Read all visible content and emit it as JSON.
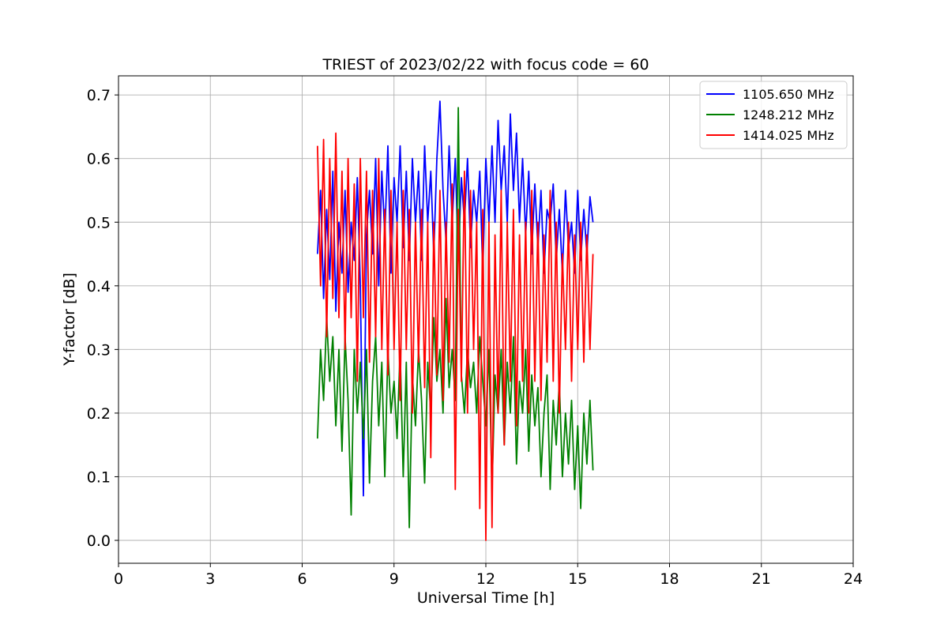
{
  "chart_data": {
    "type": "line",
    "title": "TRIEST of 2023/02/22 with focus code = 60",
    "xlabel": "Universal Time [h]",
    "ylabel": "Y-factor [dB]",
    "xlim": [
      0,
      24
    ],
    "ylim": [
      -0.036,
      0.73
    ],
    "xticks": [
      0,
      3,
      6,
      9,
      12,
      15,
      18,
      21,
      24
    ],
    "yticks": [
      0.0,
      0.1,
      0.2,
      0.3,
      0.4,
      0.5,
      0.6,
      0.7
    ],
    "grid": true,
    "legend_position": "top-right",
    "series": [
      {
        "name": "1105.650 MHz",
        "color": "#0000ff",
        "x": [
          6.5,
          6.6,
          6.7,
          6.8,
          6.9,
          7.0,
          7.1,
          7.2,
          7.3,
          7.4,
          7.5,
          7.6,
          7.7,
          7.8,
          7.9,
          8.0,
          8.1,
          8.2,
          8.3,
          8.4,
          8.5,
          8.6,
          8.7,
          8.8,
          8.9,
          9.0,
          9.1,
          9.2,
          9.3,
          9.4,
          9.5,
          9.6,
          9.7,
          9.8,
          9.9,
          10.0,
          10.1,
          10.2,
          10.3,
          10.4,
          10.5,
          10.6,
          10.7,
          10.8,
          10.9,
          11.0,
          11.1,
          11.2,
          11.3,
          11.4,
          11.5,
          11.6,
          11.7,
          11.8,
          11.9,
          12.0,
          12.1,
          12.2,
          12.3,
          12.4,
          12.5,
          12.6,
          12.7,
          12.8,
          12.9,
          13.0,
          13.1,
          13.2,
          13.3,
          13.4,
          13.5,
          13.6,
          13.7,
          13.8,
          13.9,
          14.0,
          14.1,
          14.2,
          14.3,
          14.4,
          14.5,
          14.6,
          14.7,
          14.8,
          14.9,
          15.0,
          15.1,
          15.2,
          15.3,
          15.4,
          15.5
        ],
        "values": [
          0.45,
          0.55,
          0.38,
          0.52,
          0.41,
          0.58,
          0.36,
          0.5,
          0.42,
          0.55,
          0.39,
          0.5,
          0.44,
          0.57,
          0.4,
          0.07,
          0.48,
          0.55,
          0.45,
          0.6,
          0.4,
          0.58,
          0.48,
          0.62,
          0.42,
          0.57,
          0.5,
          0.62,
          0.46,
          0.58,
          0.44,
          0.6,
          0.5,
          0.58,
          0.44,
          0.62,
          0.5,
          0.58,
          0.45,
          0.6,
          0.69,
          0.55,
          0.47,
          0.62,
          0.5,
          0.6,
          0.44,
          0.57,
          0.5,
          0.6,
          0.46,
          0.55,
          0.5,
          0.58,
          0.42,
          0.6,
          0.5,
          0.62,
          0.5,
          0.66,
          0.55,
          0.62,
          0.5,
          0.67,
          0.55,
          0.64,
          0.5,
          0.6,
          0.48,
          0.58,
          0.45,
          0.56,
          0.46,
          0.55,
          0.42,
          0.52,
          0.5,
          0.56,
          0.44,
          0.52,
          0.42,
          0.55,
          0.46,
          0.5,
          0.42,
          0.55,
          0.44,
          0.52,
          0.45,
          0.54,
          0.5
        ]
      },
      {
        "name": "1248.212 MHz",
        "color": "#008000",
        "x": [
          6.5,
          6.6,
          6.7,
          6.8,
          6.9,
          7.0,
          7.1,
          7.2,
          7.3,
          7.4,
          7.5,
          7.6,
          7.7,
          7.8,
          7.9,
          8.0,
          8.1,
          8.2,
          8.3,
          8.4,
          8.5,
          8.6,
          8.7,
          8.8,
          8.9,
          9.0,
          9.1,
          9.2,
          9.3,
          9.4,
          9.5,
          9.6,
          9.7,
          9.8,
          9.9,
          10.0,
          10.1,
          10.2,
          10.3,
          10.4,
          10.5,
          10.6,
          10.7,
          10.8,
          10.9,
          11.0,
          11.1,
          11.2,
          11.3,
          11.4,
          11.5,
          11.6,
          11.7,
          11.8,
          11.9,
          12.0,
          12.1,
          12.2,
          12.3,
          12.4,
          12.5,
          12.6,
          12.7,
          12.8,
          12.9,
          13.0,
          13.1,
          13.2,
          13.3,
          13.4,
          13.5,
          13.6,
          13.7,
          13.8,
          13.9,
          14.0,
          14.1,
          14.2,
          14.3,
          14.4,
          14.5,
          14.6,
          14.7,
          14.8,
          14.9,
          15.0,
          15.1,
          15.2,
          15.3,
          15.4,
          15.5
        ],
        "values": [
          0.16,
          0.3,
          0.22,
          0.35,
          0.25,
          0.32,
          0.18,
          0.3,
          0.14,
          0.32,
          0.22,
          0.04,
          0.3,
          0.2,
          0.28,
          0.16,
          0.3,
          0.09,
          0.25,
          0.32,
          0.18,
          0.28,
          0.1,
          0.3,
          0.2,
          0.25,
          0.16,
          0.3,
          0.1,
          0.28,
          0.02,
          0.26,
          0.18,
          0.3,
          0.22,
          0.09,
          0.28,
          0.2,
          0.35,
          0.25,
          0.3,
          0.2,
          0.38,
          0.24,
          0.3,
          0.22,
          0.68,
          0.26,
          0.2,
          0.3,
          0.24,
          0.28,
          0.2,
          0.32,
          0.25,
          0.18,
          0.3,
          0.08,
          0.26,
          0.2,
          0.3,
          0.15,
          0.28,
          0.2,
          0.32,
          0.12,
          0.25,
          0.2,
          0.3,
          0.14,
          0.26,
          0.18,
          0.24,
          0.1,
          0.2,
          0.26,
          0.08,
          0.22,
          0.15,
          0.25,
          0.1,
          0.2,
          0.12,
          0.22,
          0.08,
          0.18,
          0.05,
          0.2,
          0.12,
          0.22,
          0.11
        ]
      },
      {
        "name": "1414.025 MHz",
        "color": "#ff0000",
        "x": [
          6.5,
          6.6,
          6.7,
          6.8,
          6.9,
          7.0,
          7.1,
          7.2,
          7.3,
          7.4,
          7.5,
          7.6,
          7.7,
          7.8,
          7.9,
          8.0,
          8.1,
          8.2,
          8.3,
          8.4,
          8.5,
          8.6,
          8.7,
          8.8,
          8.9,
          9.0,
          9.1,
          9.2,
          9.3,
          9.4,
          9.5,
          9.6,
          9.7,
          9.8,
          9.9,
          10.0,
          10.1,
          10.2,
          10.3,
          10.4,
          10.5,
          10.6,
          10.7,
          10.8,
          10.9,
          11.0,
          11.1,
          11.2,
          11.3,
          11.4,
          11.5,
          11.6,
          11.7,
          11.8,
          11.9,
          12.0,
          12.1,
          12.2,
          12.3,
          12.4,
          12.5,
          12.6,
          12.7,
          12.8,
          12.9,
          13.0,
          13.1,
          13.2,
          13.3,
          13.4,
          13.5,
          13.6,
          13.7,
          13.8,
          13.9,
          14.0,
          14.1,
          14.2,
          14.3,
          14.4,
          14.5,
          14.6,
          14.7,
          14.8,
          14.9,
          15.0,
          15.1,
          15.2,
          15.3,
          15.4,
          15.5
        ],
        "values": [
          0.62,
          0.4,
          0.63,
          0.32,
          0.6,
          0.38,
          0.64,
          0.35,
          0.58,
          0.3,
          0.6,
          0.35,
          0.56,
          0.25,
          0.6,
          0.35,
          0.58,
          0.28,
          0.55,
          0.32,
          0.6,
          0.3,
          0.52,
          0.26,
          0.55,
          0.3,
          0.5,
          0.22,
          0.55,
          0.3,
          0.52,
          0.2,
          0.5,
          0.28,
          0.52,
          0.24,
          0.5,
          0.13,
          0.5,
          0.26,
          0.55,
          0.22,
          0.5,
          0.28,
          0.56,
          0.08,
          0.52,
          0.25,
          0.58,
          0.2,
          0.55,
          0.3,
          0.5,
          0.05,
          0.52,
          0.0,
          0.5,
          0.02,
          0.48,
          0.2,
          0.55,
          0.15,
          0.5,
          0.25,
          0.52,
          0.18,
          0.48,
          0.25,
          0.5,
          0.2,
          0.55,
          0.25,
          0.5,
          0.22,
          0.48,
          0.28,
          0.55,
          0.25,
          0.5,
          0.2,
          0.45,
          0.3,
          0.5,
          0.25,
          0.48,
          0.3,
          0.5,
          0.28,
          0.48,
          0.3,
          0.45
        ]
      }
    ]
  }
}
